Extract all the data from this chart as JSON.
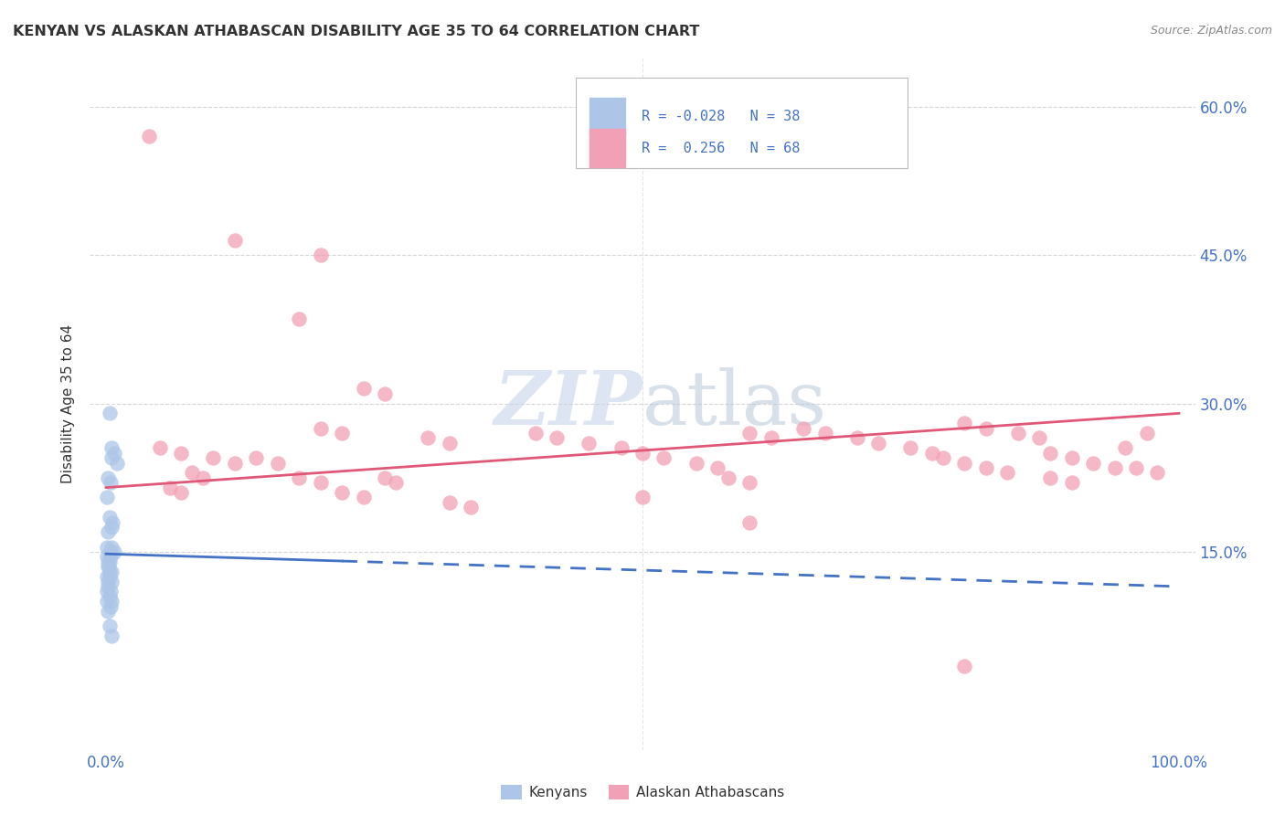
{
  "title": "KENYAN VS ALASKAN ATHABASCAN DISABILITY AGE 35 TO 64 CORRELATION CHART",
  "source": "Source: ZipAtlas.com",
  "ylabel_label": "Disability Age 35 to 64",
  "kenyan_color": "#adc6e8",
  "athabascan_color": "#f2a0b5",
  "kenyan_line_color": "#4472c4",
  "athabascan_line_color": "#e05878",
  "kenyan_scatter": [
    [
      0.3,
      29.0
    ],
    [
      0.5,
      25.5
    ],
    [
      0.8,
      25.0
    ],
    [
      0.5,
      24.5
    ],
    [
      1.0,
      24.0
    ],
    [
      0.2,
      22.5
    ],
    [
      0.4,
      22.0
    ],
    [
      0.1,
      20.5
    ],
    [
      0.3,
      18.5
    ],
    [
      0.6,
      18.0
    ],
    [
      0.2,
      17.0
    ],
    [
      0.5,
      17.5
    ],
    [
      0.1,
      15.5
    ],
    [
      0.3,
      15.0
    ],
    [
      0.5,
      15.5
    ],
    [
      0.8,
      15.0
    ],
    [
      0.1,
      14.5
    ],
    [
      0.2,
      14.0
    ],
    [
      0.3,
      14.0
    ],
    [
      0.4,
      14.5
    ],
    [
      0.15,
      13.5
    ],
    [
      0.25,
      13.5
    ],
    [
      0.35,
      13.0
    ],
    [
      0.5,
      13.0
    ],
    [
      0.1,
      12.5
    ],
    [
      0.2,
      12.0
    ],
    [
      0.3,
      12.5
    ],
    [
      0.5,
      12.0
    ],
    [
      0.1,
      11.0
    ],
    [
      0.2,
      11.5
    ],
    [
      0.4,
      11.0
    ],
    [
      0.1,
      10.0
    ],
    [
      0.3,
      10.5
    ],
    [
      0.5,
      10.0
    ],
    [
      0.2,
      9.0
    ],
    [
      0.4,
      9.5
    ],
    [
      0.3,
      7.5
    ],
    [
      0.5,
      6.5
    ]
  ],
  "athabascan_scatter": [
    [
      4.0,
      57.0
    ],
    [
      12.0,
      46.5
    ],
    [
      20.0,
      45.0
    ],
    [
      18.0,
      38.5
    ],
    [
      24.0,
      31.5
    ],
    [
      26.0,
      31.0
    ],
    [
      20.0,
      27.5
    ],
    [
      22.0,
      27.0
    ],
    [
      30.0,
      26.5
    ],
    [
      32.0,
      26.0
    ],
    [
      5.0,
      25.5
    ],
    [
      7.0,
      25.0
    ],
    [
      10.0,
      24.5
    ],
    [
      12.0,
      24.0
    ],
    [
      14.0,
      24.5
    ],
    [
      16.0,
      24.0
    ],
    [
      8.0,
      23.0
    ],
    [
      9.0,
      22.5
    ],
    [
      18.0,
      22.5
    ],
    [
      20.0,
      22.0
    ],
    [
      26.0,
      22.5
    ],
    [
      27.0,
      22.0
    ],
    [
      22.0,
      21.0
    ],
    [
      24.0,
      20.5
    ],
    [
      32.0,
      20.0
    ],
    [
      34.0,
      19.5
    ],
    [
      6.0,
      21.5
    ],
    [
      7.0,
      21.0
    ],
    [
      40.0,
      27.0
    ],
    [
      42.0,
      26.5
    ],
    [
      45.0,
      26.0
    ],
    [
      48.0,
      25.5
    ],
    [
      50.0,
      25.0
    ],
    [
      52.0,
      24.5
    ],
    [
      55.0,
      24.0
    ],
    [
      57.0,
      23.5
    ],
    [
      60.0,
      27.0
    ],
    [
      62.0,
      26.5
    ],
    [
      58.0,
      22.5
    ],
    [
      60.0,
      22.0
    ],
    [
      65.0,
      27.5
    ],
    [
      67.0,
      27.0
    ],
    [
      70.0,
      26.5
    ],
    [
      72.0,
      26.0
    ],
    [
      75.0,
      25.5
    ],
    [
      77.0,
      25.0
    ],
    [
      80.0,
      28.0
    ],
    [
      82.0,
      27.5
    ],
    [
      85.0,
      27.0
    ],
    [
      87.0,
      26.5
    ],
    [
      78.0,
      24.5
    ],
    [
      80.0,
      24.0
    ],
    [
      82.0,
      23.5
    ],
    [
      84.0,
      23.0
    ],
    [
      88.0,
      25.0
    ],
    [
      90.0,
      24.5
    ],
    [
      92.0,
      24.0
    ],
    [
      94.0,
      23.5
    ],
    [
      88.0,
      22.5
    ],
    [
      90.0,
      22.0
    ],
    [
      95.0,
      25.5
    ],
    [
      97.0,
      27.0
    ],
    [
      96.0,
      23.5
    ],
    [
      98.0,
      23.0
    ],
    [
      50.0,
      20.5
    ],
    [
      60.0,
      18.0
    ],
    [
      80.0,
      3.5
    ]
  ],
  "xlim": [
    -1.5,
    101.5
  ],
  "ylim": [
    -5,
    65
  ],
  "background_color": "#ffffff",
  "grid_color": "#cccccc",
  "kenyan_line_x0": 0.0,
  "kenyan_line_y0": 14.8,
  "kenyan_line_x1": 100.0,
  "kenyan_line_y1": 11.5,
  "kenyan_solid_end": 22.0,
  "athabascan_line_x0": 0.0,
  "athabascan_line_y0": 21.5,
  "athabascan_line_x1": 100.0,
  "athabascan_line_y1": 29.0,
  "yticks": [
    0,
    15,
    30,
    45,
    60
  ],
  "ytick_labels": [
    "",
    "15.0%",
    "30.0%",
    "45.0%",
    "60.0%"
  ],
  "xtick_labels_pos": [
    0,
    100
  ],
  "xtick_labels": [
    "0.0%",
    "100.0%"
  ]
}
